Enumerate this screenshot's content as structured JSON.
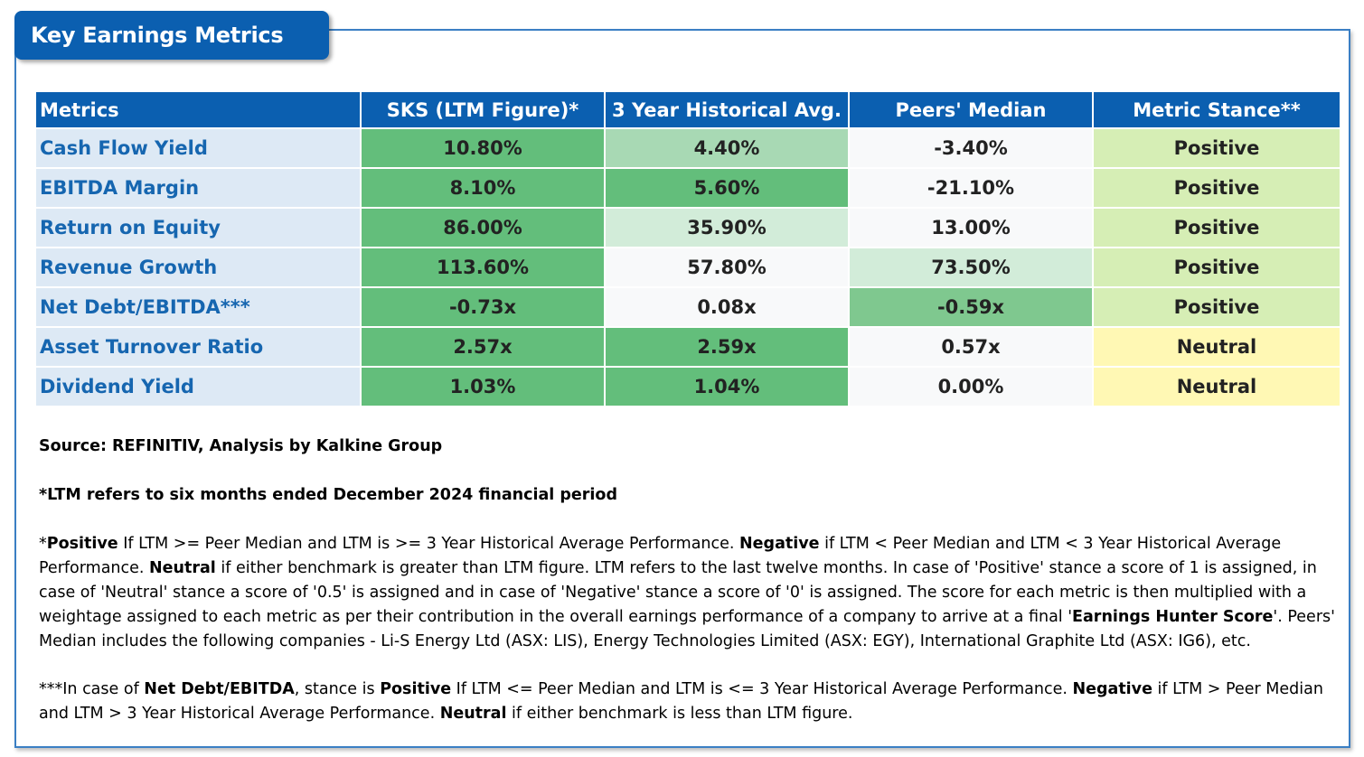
{
  "title": "Key Earnings Metrics",
  "table": {
    "headers": [
      "Metrics",
      "SKS (LTM Figure)*",
      "3 Year Historical Avg.",
      "Peers' Median",
      "Metric Stance**"
    ],
    "rows": [
      {
        "metric": "Cash Flow Yield",
        "ltm": "10.80%",
        "hist": "4.40%",
        "peers": "-3.40%",
        "stance": "Positive"
      },
      {
        "metric": "EBITDA Margin",
        "ltm": "8.10%",
        "hist": "5.60%",
        "peers": "-21.10%",
        "stance": "Positive"
      },
      {
        "metric": "Return on Equity",
        "ltm": "86.00%",
        "hist": "35.90%",
        "peers": "13.00%",
        "stance": "Positive"
      },
      {
        "metric": "Revenue Growth",
        "ltm": "113.60%",
        "hist": "57.80%",
        "peers": "73.50%",
        "stance": "Positive"
      },
      {
        "metric": "Net Debt/EBITDA***",
        "ltm": "-0.73x",
        "hist": "0.08x",
        "peers": "-0.59x",
        "stance": "Positive"
      },
      {
        "metric": "Asset Turnover Ratio",
        "ltm": "2.57x",
        "hist": "2.59x",
        "peers": "0.57x",
        "stance": "Neutral"
      },
      {
        "metric": "Dividend Yield",
        "ltm": "1.03%",
        "hist": "1.04%",
        "peers": "0.00%",
        "stance": "Neutral"
      }
    ],
    "colors": {
      "header_bg": "#0b5fb0",
      "metric_bg": "#dde9f5",
      "metric_text": "#1666b0",
      "positive_bg": "#d6eeb5",
      "neutral_bg": "#fff8b4",
      "green_dark": "#63be7b",
      "green_medium": "#7fc88f",
      "green_light": "#a8d9b4",
      "green_pale": "#d2ecd9",
      "white": "#f8f9fa"
    }
  },
  "notes": {
    "source": "Source: REFINITIV, Analysis by Kalkine Group",
    "ltm": "*LTM refers to six months ended December 2024 financial period",
    "stance": {
      "p1": "*",
      "b1": "Positive",
      "p2": " If LTM >= Peer Median and LTM is >= 3 Year Historical Average Performance. ",
      "b2": "Negative",
      "p3": " if LTM < Peer Median and LTM < 3 Year Historical Average Performance. ",
      "b3": "Neutral",
      "p4": " if either benchmark is greater than LTM figure. LTM refers to the last twelve months. In case of 'Positive' stance a score of 1 is assigned, in case of 'Neutral' stance a score of '0.5' is assigned and in case of 'Negative' stance a score of '0' is assigned. The score for each metric is then multiplied with a weightage assigned to each metric as per their contribution in the overall earnings performance of a company to arrive at a final '",
      "b4": "Earnings Hunter Score",
      "p5": "'. Peers' Median includes the following companies - Li-S Energy Ltd (ASX: LIS), Energy Technologies Limited (ASX: EGY), International Graphite Ltd (ASX: IG6), etc."
    },
    "netdebt": {
      "p1": "***In case of ",
      "b1": "Net Debt/EBITDA",
      "p2": ", stance is ",
      "b2": "Positive",
      "p3": " If LTM <= Peer Median and LTM is <= 3 Year Historical Average Performance. ",
      "b3": "Negative",
      "p4": " if LTM > Peer Median and LTM > 3 Year Historical Average Performance. ",
      "b4": "Neutral",
      "p5": " if either benchmark is less than LTM figure."
    }
  }
}
